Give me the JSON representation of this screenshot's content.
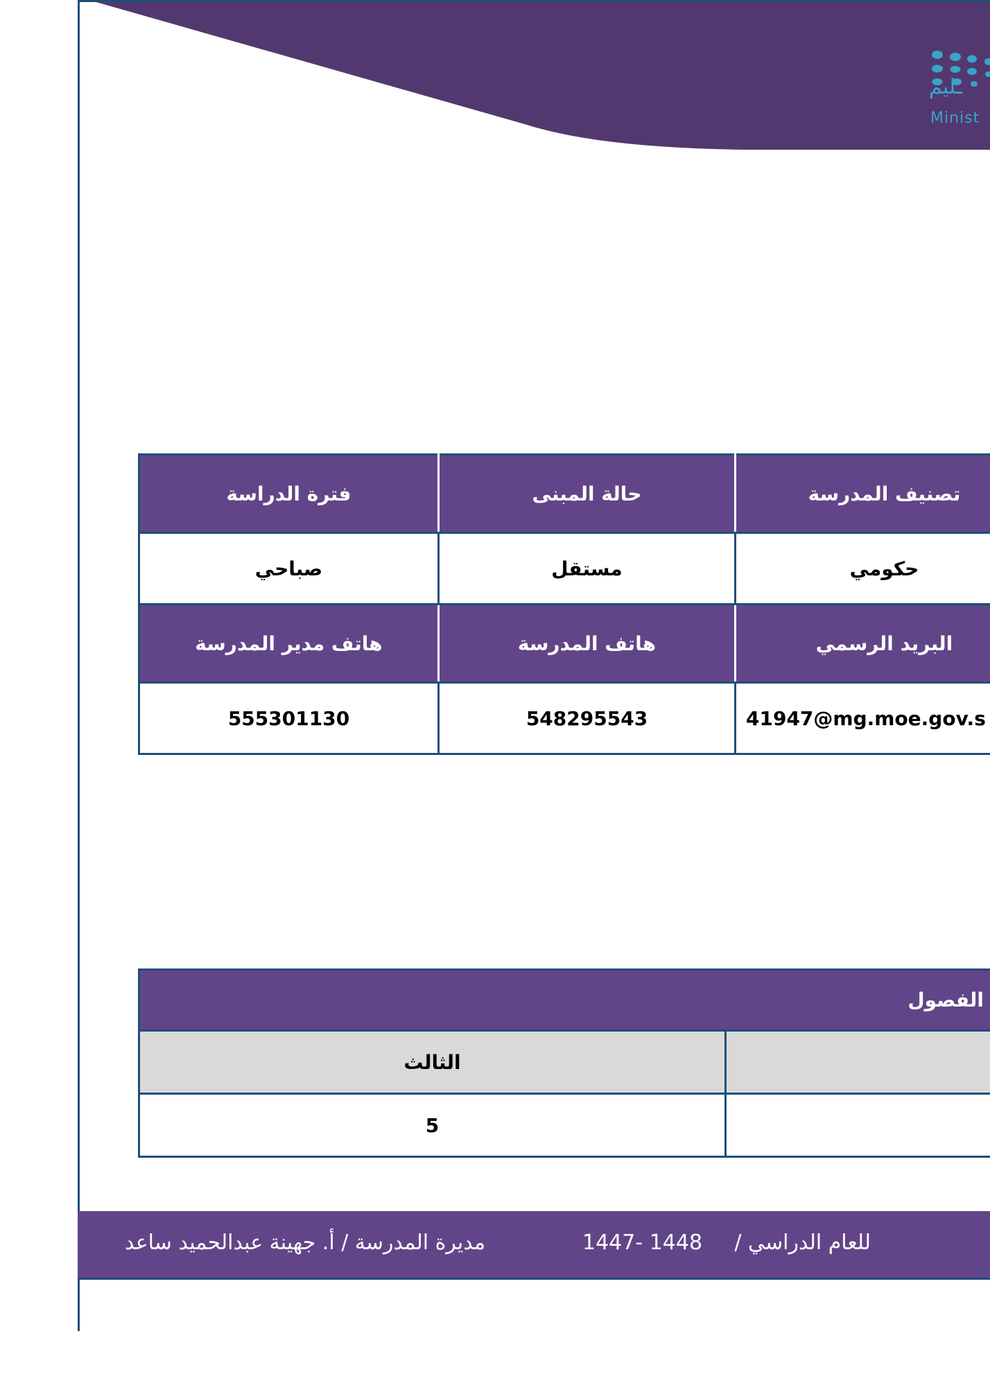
{
  "header": {
    "logo_text_ar": "ـليم",
    "logo_text_en": "Minist",
    "colors": {
      "wave": "#533870",
      "logo": "#3aa3c9",
      "border": "#1f4e79"
    }
  },
  "info_table": {
    "row1_headers": [
      "تصنيف المدرسة",
      "حالة المبنى",
      "فترة الدراسة"
    ],
    "row1_values": [
      "حكومي",
      "مستقل",
      "صباحي"
    ],
    "row2_headers": [
      "البريد الرسمي",
      "هاتف المدرسة",
      "هاتف مدير المدرسة"
    ],
    "row2_values": [
      "41947@mg.moe.gov.s",
      "548295543",
      "555301130"
    ],
    "header_color": "#614588"
  },
  "classes_table": {
    "title": "الفصول",
    "grades": [
      "",
      "الثالث"
    ],
    "counts": [
      "",
      "5"
    ]
  },
  "footer": {
    "year_label": "للعام الدراسي /",
    "year_value": "1447- 1448",
    "principal": "مديرة المدرسة / أ. جهينة عبدالحميد ساعد"
  }
}
